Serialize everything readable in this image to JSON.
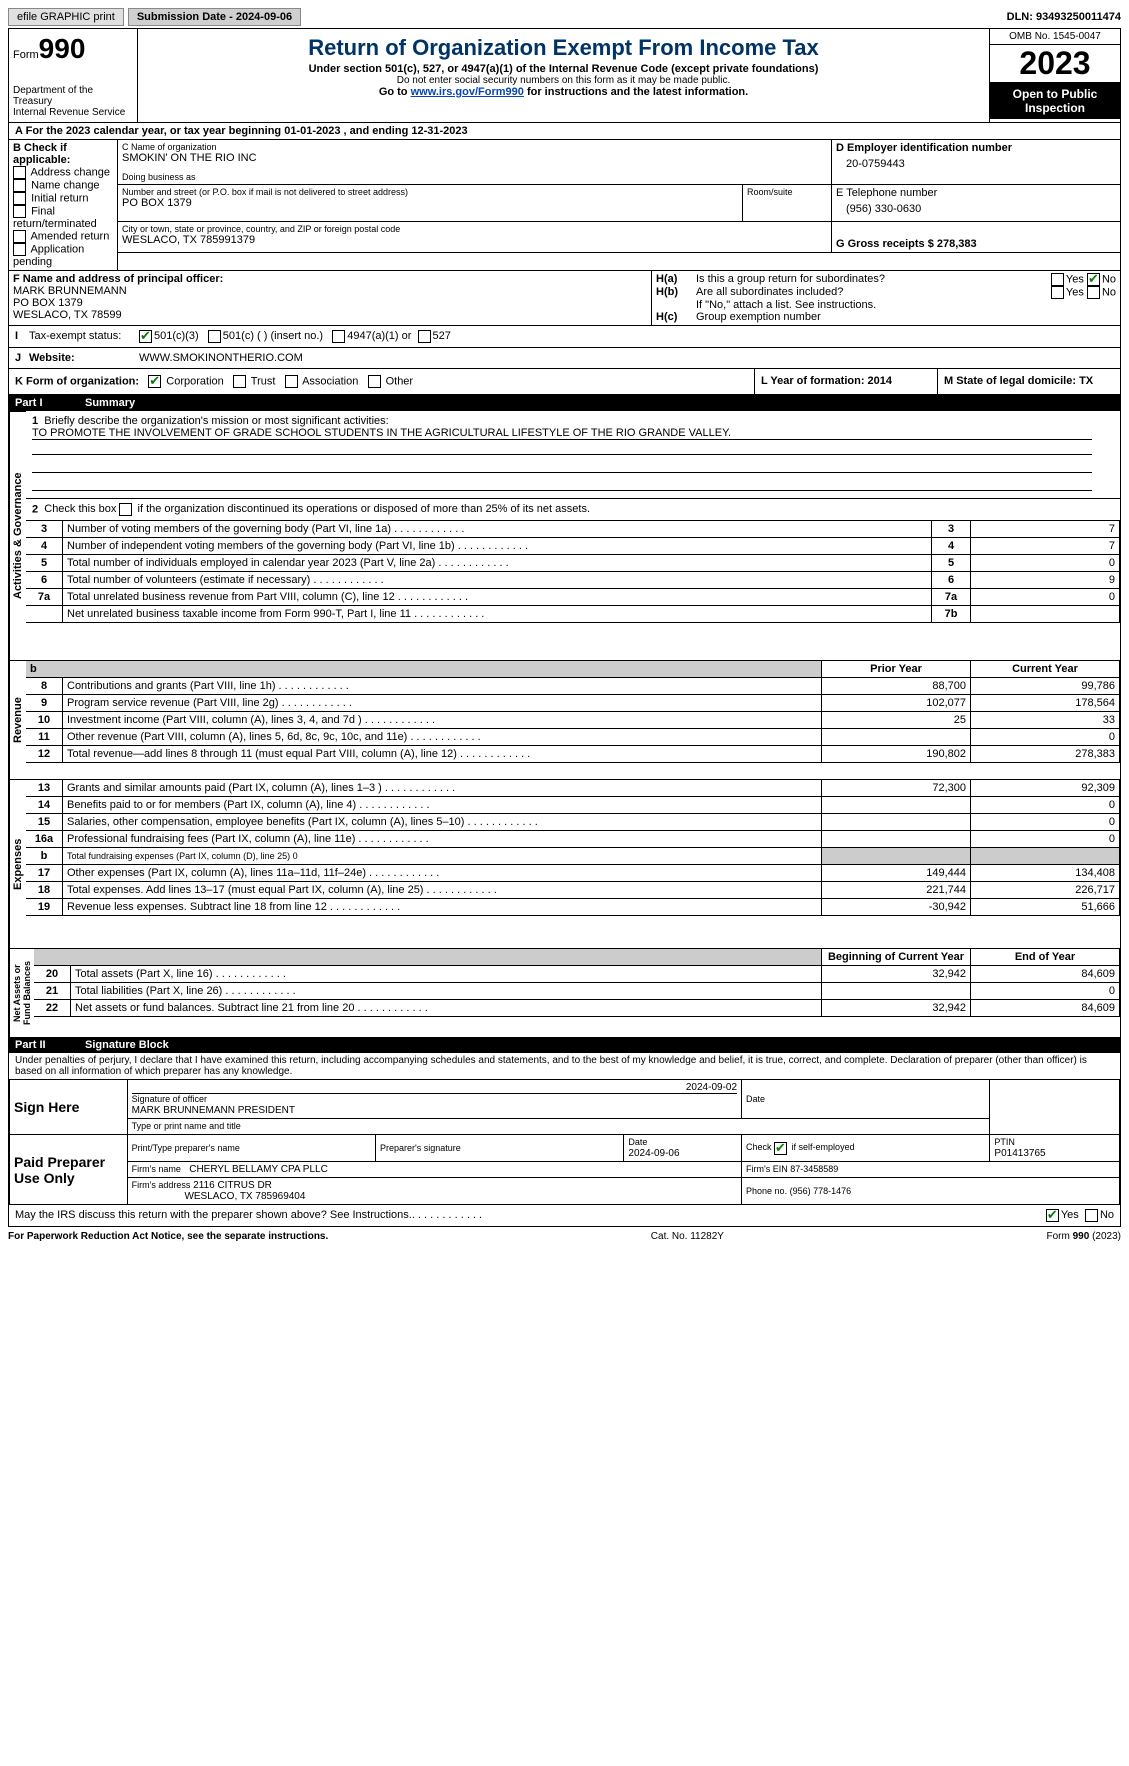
{
  "topbar": {
    "efile": "efile GRAPHIC print",
    "subdate_lbl": "Submission Date - 2024-09-06",
    "dln_lbl": "DLN: 93493250011474"
  },
  "hdr": {
    "form": "Form",
    "num": "990",
    "dept": "Department of the Treasury",
    "irs": "Internal Revenue Service",
    "title": "Return of Organization Exempt From Income Tax",
    "sub1": "Under section 501(c), 527, or 4947(a)(1) of the Internal Revenue Code (except private foundations)",
    "sub2": "Do not enter social security numbers on this form as it may be made public.",
    "sub3a": "Go to ",
    "sub3b": "www.irs.gov/Form990",
    "sub3c": " for instructions and the latest information.",
    "omb": "OMB No. 1545-0047",
    "year": "2023",
    "insp": "Open to Public Inspection"
  },
  "A": {
    "txt": "For the 2023 calendar year, or tax year beginning 01-01-2023   , and ending 12-31-2023"
  },
  "B": {
    "hdr": "B Check if applicable:",
    "items": [
      "Address change",
      "Name change",
      "Initial return",
      "Final return/terminated",
      "Amended return",
      "Application pending"
    ]
  },
  "C": {
    "lbl": "C Name of organization",
    "name": "SMOKIN' ON THE RIO INC",
    "dba_lbl": "Doing business as",
    "addr_lbl": "Number and street (or P.O. box if mail is not delivered to street address)",
    "addr": "PO BOX 1379",
    "room_lbl": "Room/suite",
    "city_lbl": "City or town, state or province, country, and ZIP or foreign postal code",
    "city": "WESLACO, TX  785991379"
  },
  "D": {
    "lbl": "D Employer identification number",
    "val": "20-0759443"
  },
  "E": {
    "lbl": "E Telephone number",
    "val": "(956) 330-0630"
  },
  "G": {
    "lbl": "G Gross receipts $ 278,383"
  },
  "F": {
    "lbl": "F  Name and address of principal officer:",
    "name": "MARK BRUNNEMANN",
    "addr1": "PO BOX 1379",
    "addr2": "WESLACO, TX  78599"
  },
  "H": {
    "a": "Is this a group return for subordinates?",
    "b": "Are all subordinates included?",
    "bnote": "If \"No,\" attach a list. See instructions.",
    "c": "Group exemption number",
    "yes": "Yes",
    "no": "No",
    "ha": "H(a)",
    "hb": "H(b)",
    "hc": "H(c)"
  },
  "I": {
    "lbl": "Tax-exempt status:",
    "c3": "501(c)(3)",
    "c": "501(c) (  ) (insert no.)",
    "a1": "4947(a)(1) or",
    "s527": "527"
  },
  "J": {
    "lbl": "Website:",
    "val": "WWW.SMOKINONTHERIO.COM"
  },
  "K": {
    "lbl": "K Form of organization:",
    "corp": "Corporation",
    "trust": "Trust",
    "assoc": "Association",
    "other": "Other"
  },
  "L": {
    "lbl": "L Year of formation: 2014"
  },
  "M": {
    "lbl": "M State of legal domicile: TX"
  },
  "part1": {
    "pn": "Part I",
    "title": "Summary",
    "l1a": "Briefly describe the organization's mission or most significant activities:",
    "l1b": "TO PROMOTE THE INVOLVEMENT OF GRADE SCHOOL STUDENTS IN THE AGRICULTURAL LIFESTYLE OF THE RIO GRANDE VALLEY.",
    "l2": "Check this box      if the organization discontinued its operations or disposed of more than 25% of its net assets.",
    "vtabs": [
      "Activities & Governance",
      "Revenue",
      "Expenses",
      "Net Assets or Fund Balances"
    ],
    "rows1": [
      {
        "n": "3",
        "t": "Number of voting members of the governing body (Part VI, line 1a)",
        "c": "3",
        "v": "7"
      },
      {
        "n": "4",
        "t": "Number of independent voting members of the governing body (Part VI, line 1b)",
        "c": "4",
        "v": "7"
      },
      {
        "n": "5",
        "t": "Total number of individuals employed in calendar year 2023 (Part V, line 2a)",
        "c": "5",
        "v": "0"
      },
      {
        "n": "6",
        "t": "Total number of volunteers (estimate if necessary)",
        "c": "6",
        "v": "9"
      },
      {
        "n": "7a",
        "t": "Total unrelated business revenue from Part VIII, column (C), line 12",
        "c": "7a",
        "v": "0"
      },
      {
        "n": "",
        "t": "Net unrelated business taxable income from Form 990-T, Part I, line 11",
        "c": "7b",
        "v": ""
      }
    ],
    "colhdr": {
      "prior": "Prior Year",
      "curr": "Current Year",
      "beg": "Beginning of Current Year",
      "end": "End of Year"
    },
    "rows2": [
      {
        "n": "8",
        "t": "Contributions and grants (Part VIII, line 1h)",
        "p": "88,700",
        "c": "99,786"
      },
      {
        "n": "9",
        "t": "Program service revenue (Part VIII, line 2g)",
        "p": "102,077",
        "c": "178,564"
      },
      {
        "n": "10",
        "t": "Investment income (Part VIII, column (A), lines 3, 4, and 7d )",
        "p": "25",
        "c": "33"
      },
      {
        "n": "11",
        "t": "Other revenue (Part VIII, column (A), lines 5, 6d, 8c, 9c, 10c, and 11e)",
        "p": "",
        "c": "0"
      },
      {
        "n": "12",
        "t": "Total revenue—add lines 8 through 11 (must equal Part VIII, column (A), line 12)",
        "p": "190,802",
        "c": "278,383"
      }
    ],
    "rows3": [
      {
        "n": "13",
        "t": "Grants and similar amounts paid (Part IX, column (A), lines 1–3 )",
        "p": "72,300",
        "c": "92,309"
      },
      {
        "n": "14",
        "t": "Benefits paid to or for members (Part IX, column (A), line 4)",
        "p": "",
        "c": "0"
      },
      {
        "n": "15",
        "t": "Salaries, other compensation, employee benefits (Part IX, column (A), lines 5–10)",
        "p": "",
        "c": "0"
      },
      {
        "n": "16a",
        "t": "Professional fundraising fees (Part IX, column (A), line 11e)",
        "p": "",
        "c": "0"
      },
      {
        "n": "b",
        "t": "Total fundraising expenses (Part IX, column (D), line 25) 0",
        "p": "shade",
        "c": "shade"
      },
      {
        "n": "17",
        "t": "Other expenses (Part IX, column (A), lines 11a–11d, 11f–24e)",
        "p": "149,444",
        "c": "134,408"
      },
      {
        "n": "18",
        "t": "Total expenses. Add lines 13–17 (must equal Part IX, column (A), line 25)",
        "p": "221,744",
        "c": "226,717"
      },
      {
        "n": "19",
        "t": "Revenue less expenses. Subtract line 18 from line 12",
        "p": "-30,942",
        "c": "51,666"
      }
    ],
    "rows4": [
      {
        "n": "20",
        "t": "Total assets (Part X, line 16)",
        "p": "32,942",
        "c": "84,609"
      },
      {
        "n": "21",
        "t": "Total liabilities (Part X, line 26)",
        "p": "",
        "c": "0"
      },
      {
        "n": "22",
        "t": "Net assets or fund balances. Subtract line 21 from line 20",
        "p": "32,942",
        "c": "84,609"
      }
    ]
  },
  "part2": {
    "pn": "Part II",
    "title": "Signature Block",
    "decl": "Under penalties of perjury, I declare that I have examined this return, including accompanying schedules and statements, and to the best of my knowledge and belief, it is true, correct, and complete. Declaration of preparer (other than officer) is based on all information of which preparer has any knowledge."
  },
  "sign": {
    "here": "Sign Here",
    "sig_lbl": "Signature of officer",
    "date_lbl": "Date",
    "date": "2024-09-02",
    "name": "MARK BRUNNEMANN  PRESIDENT",
    "name_lbl": "Type or print name and title"
  },
  "paid": {
    "here": "Paid Preparer Use Only",
    "pname_lbl": "Print/Type preparer's name",
    "psig_lbl": "Preparer's signature",
    "pdate_lbl": "Date",
    "pdate": "2024-09-06",
    "chk_lbl": "Check         if self-employed",
    "ptin_lbl": "PTIN",
    "ptin": "P01413765",
    "firm_lbl": "Firm's name",
    "firm": "CHERYL BELLAMY CPA PLLC",
    "ein_lbl": "Firm's EIN 87-3458589",
    "addr_lbl": "Firm's address",
    "addr": "2116 CITRUS DR",
    "addr2": "WESLACO, TX  785969404",
    "phone_lbl": "Phone no. (956) 778-1476"
  },
  "discuss": {
    "q": "May the IRS discuss this return with the preparer shown above? See Instructions.",
    "yes": "Yes",
    "no": "No"
  },
  "footer": {
    "l": "For Paperwork Reduction Act Notice, see the separate instructions.",
    "c": "Cat. No. 11282Y",
    "r": "Form 990 (2023)"
  }
}
